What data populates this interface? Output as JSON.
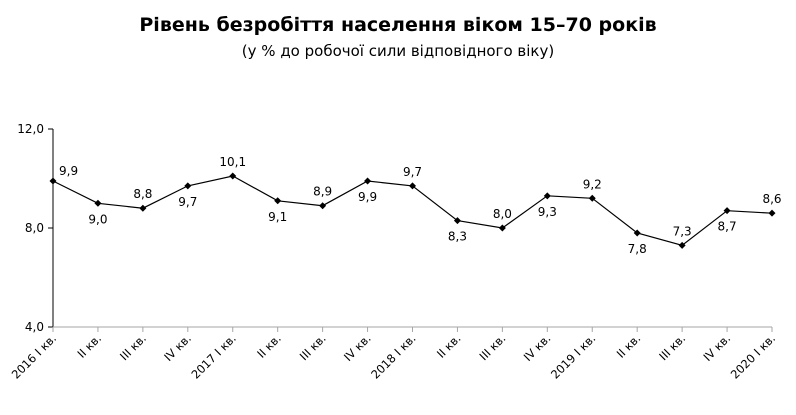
{
  "chart_data": {
    "type": "line",
    "title": "Рівень безробіття населення віком 15–70 років",
    "subtitle": "(у % до робочої сили відповідного віку)",
    "xlabel": "",
    "ylabel": "",
    "ylim": [
      4.0,
      12.0
    ],
    "yticks": [
      "4,0",
      "8,0",
      "12,0"
    ],
    "grid": false,
    "legend": null,
    "categories": [
      "2016 I кв.",
      "II кв.",
      "III кв.",
      "IV кв.",
      "2017 I кв.",
      "II кв.",
      "III кв.",
      "IV кв.",
      "2018 I кв.",
      "II кв.",
      "III кв.",
      "IV кв.",
      "2019 I кв.",
      "II кв.",
      "III кв.",
      "IV кв.",
      "2020 I кв."
    ],
    "series": [
      {
        "name": "Рівень безробіття",
        "values": [
          9.9,
          9.0,
          8.8,
          9.7,
          10.1,
          9.1,
          8.9,
          9.9,
          9.7,
          8.3,
          8.0,
          9.3,
          9.2,
          7.8,
          7.3,
          8.7,
          8.6
        ],
        "labels": [
          "9,9",
          "9,0",
          "8,8",
          "9,7",
          "10,1",
          "9,1",
          "8,9",
          "9,9",
          "9,7",
          "8,3",
          "8,0",
          "9,3",
          "9,2",
          "7,8",
          "7,3",
          "8,7",
          "8,6"
        ],
        "label_pos": [
          "right-above",
          "below",
          "above",
          "below",
          "above",
          "below",
          "above",
          "below",
          "above",
          "below",
          "above",
          "below",
          "above",
          "below",
          "above",
          "below",
          "above"
        ],
        "color": "#000000"
      }
    ]
  }
}
